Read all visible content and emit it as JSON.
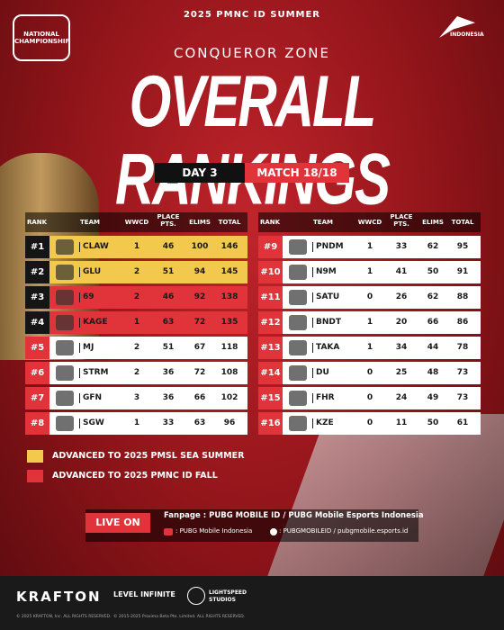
{
  "header": {
    "event": "2025 PMNC ID SUMMER",
    "logo_left": "NATIONAL CHAMPIONSHIP",
    "logo_right": "INDONESIA",
    "zone": "CONQUEROR ZONE",
    "title": "OVERALL RANKINGS",
    "day": "DAY 3",
    "match": "MATCH 18/18"
  },
  "columns": [
    "RANK",
    "TEAM",
    "WWCD",
    "PLACE PTS.",
    "ELIMS",
    "TOTAL"
  ],
  "tables": [
    {
      "rows": [
        {
          "rank": "#1",
          "team": "CLAW",
          "wwcd": 1,
          "place": 46,
          "elims": 100,
          "total": 146,
          "color": "#f2c94c"
        },
        {
          "rank": "#2",
          "team": "GLU",
          "wwcd": 2,
          "place": 51,
          "elims": 94,
          "total": 145,
          "color": "#f2c94c"
        },
        {
          "rank": "#3",
          "team": "69",
          "wwcd": 2,
          "place": 46,
          "elims": 92,
          "total": 138,
          "color": "#e0333a"
        },
        {
          "rank": "#4",
          "team": "KAGE",
          "wwcd": 1,
          "place": 63,
          "elims": 72,
          "total": 135,
          "color": "#e0333a"
        },
        {
          "rank": "#5",
          "team": "MJ",
          "wwcd": 2,
          "place": 51,
          "elims": 67,
          "total": 118,
          "color": "#ffffff"
        },
        {
          "rank": "#6",
          "team": "STRM",
          "wwcd": 2,
          "place": 36,
          "elims": 72,
          "total": 108,
          "color": "#ffffff"
        },
        {
          "rank": "#7",
          "team": "GFN",
          "wwcd": 3,
          "place": 36,
          "elims": 66,
          "total": 102,
          "color": "#ffffff"
        },
        {
          "rank": "#8",
          "team": "SGW",
          "wwcd": 1,
          "place": 33,
          "elims": 63,
          "total": 96,
          "color": "#ffffff"
        }
      ]
    },
    {
      "rows": [
        {
          "rank": "#9",
          "team": "PNDM",
          "wwcd": 1,
          "place": 33,
          "elims": 62,
          "total": 95,
          "color": "#ffffff"
        },
        {
          "rank": "#10",
          "team": "N9M",
          "wwcd": 1,
          "place": 41,
          "elims": 50,
          "total": 91,
          "color": "#ffffff"
        },
        {
          "rank": "#11",
          "team": "SATU",
          "wwcd": 0,
          "place": 26,
          "elims": 62,
          "total": 88,
          "color": "#ffffff"
        },
        {
          "rank": "#12",
          "team": "BNDT",
          "wwcd": 1,
          "place": 20,
          "elims": 66,
          "total": 86,
          "color": "#ffffff"
        },
        {
          "rank": "#13",
          "team": "TAKA",
          "wwcd": 1,
          "place": 34,
          "elims": 44,
          "total": 78,
          "color": "#ffffff"
        },
        {
          "rank": "#14",
          "team": "DU",
          "wwcd": 0,
          "place": 25,
          "elims": 48,
          "total": 73,
          "color": "#ffffff"
        },
        {
          "rank": "#15",
          "team": "FHR",
          "wwcd": 0,
          "place": 24,
          "elims": 49,
          "total": 73,
          "color": "#ffffff"
        },
        {
          "rank": "#16",
          "team": "KZE",
          "wwcd": 0,
          "place": 11,
          "elims": 50,
          "total": 61,
          "color": "#ffffff"
        }
      ]
    }
  ],
  "legend": [
    {
      "label": "ADVANCED TO 2025 PMSL SEA SUMMER",
      "color": "#f2c94c"
    },
    {
      "label": "ADVANCED TO 2025 PMNC ID FALL",
      "color": "#e0333a"
    }
  ],
  "footer": {
    "live": "LIVE ON",
    "fanpage": "Fanpage : PUBG MOBILE ID / PUBG Mobile Esports Indonesia",
    "youtube": ": PUBG Mobile Indonesia",
    "tiktok": ": PUBGMOBILEID / pubgmobile.esports.id"
  },
  "bottom": {
    "krafton": "KRAFTON",
    "level": "LEVEL INFINITE",
    "lightspeed": "LIGHTSPEED STUDIOS",
    "copy1": "© 2025 KRAFTON, Inc. ALL RIGHTS RESERVED.",
    "copy2": "© 2015-2025 Proxima Beta Pte. Limited. ALL RIGHTS RESERVED."
  }
}
